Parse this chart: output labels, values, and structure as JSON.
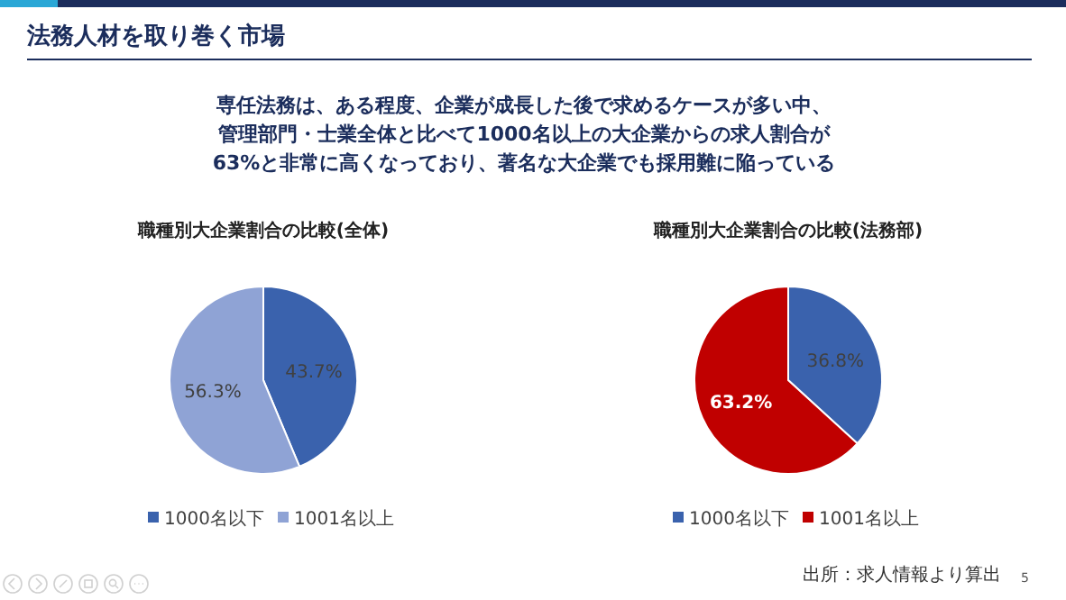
{
  "chart_data": [
    {
      "type": "other",
      "title": "法務人材を取り巻く市場",
      "subtitle": "専任法務は、ある程度、企業が成長した後で求めるケースが多い中、管理部門・士業全体と比べて1000名以上の大企業からの求人割合が63%と非常に高くなっており、著名な大企業でも採用難に陥っている",
      "annotations": [
        "出所：求人情報より算出",
        "5"
      ]
    },
    {
      "type": "pie",
      "title": "職種別大企業割合の比較(全体)",
      "categories": [
        "1000名以下",
        "1001名以上"
      ],
      "values": [
        43.7,
        56.3
      ],
      "value_labels": [
        "43.7%",
        "56.3%"
      ],
      "colors": [
        "#3a62ad",
        "#8fa3d5"
      ],
      "legend": "bottom"
    },
    {
      "type": "pie",
      "title": "職種別大企業割合の比較(法務部)",
      "categories": [
        "1000名以下",
        "1001名以上"
      ],
      "values": [
        36.8,
        63.2
      ],
      "value_labels": [
        "36.8%",
        "63.2%"
      ],
      "colors": [
        "#3a62ad",
        "#c00000"
      ],
      "legend": "bottom"
    }
  ]
}
